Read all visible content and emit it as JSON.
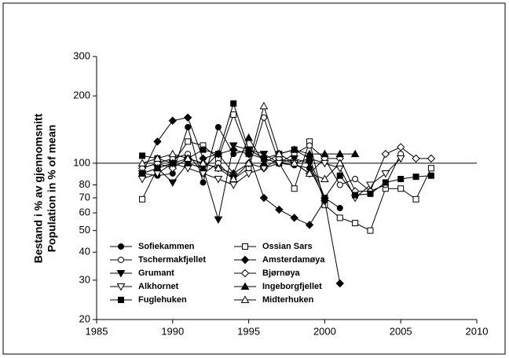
{
  "chart_data": {
    "type": "line",
    "y_title": [
      "Bestand i % av gjennomsnitt",
      "Population in % of mean"
    ],
    "x": [
      1988,
      1989,
      1990,
      1991,
      1992,
      1993,
      1994,
      1995,
      1996,
      1997,
      1998,
      1999,
      2000,
      2001,
      2002,
      2003,
      2004,
      2005,
      2006,
      2007
    ],
    "xlim": [
      1985,
      2010
    ],
    "xticks": [
      1985,
      1990,
      1995,
      2000,
      2005,
      2010
    ],
    "ylim": [
      20,
      300
    ],
    "yticks": [
      20,
      30,
      40,
      50,
      60,
      70,
      80,
      100,
      200,
      300
    ],
    "log_y": true,
    "hline": 100,
    "legend": "lower left",
    "series": [
      {
        "name": "Sofiekammen",
        "color": "#000000",
        "marker": "circle",
        "filled": true,
        "values": [
          90,
          88,
          90,
          145,
          82,
          145,
          110,
          115,
          105,
          100,
          98,
          95,
          70,
          63,
          null,
          null,
          null,
          null,
          null,
          null
        ]
      },
      {
        "name": "Ossian Sars",
        "color": "#000000",
        "marker": "square",
        "filled": false,
        "values": [
          69,
          95,
          100,
          125,
          120,
          105,
          165,
          110,
          105,
          100,
          77,
          125,
          65,
          57,
          54,
          50,
          77,
          77,
          69,
          95
        ]
      },
      {
        "name": "Tschermakfjellet",
        "color": "#000000",
        "marker": "circle",
        "filled": false,
        "values": [
          95,
          100,
          105,
          110,
          90,
          100,
          85,
          95,
          160,
          100,
          110,
          120,
          105,
          80,
          85,
          75,
          80,
          110,
          null,
          null
        ]
      },
      {
        "name": "Amsterdamøya",
        "color": "#000000",
        "marker": "diamond",
        "filled": true,
        "values": [
          90,
          125,
          155,
          160,
          105,
          110,
          115,
          110,
          70,
          62,
          57,
          53,
          68,
          29,
          null,
          null,
          null,
          null,
          null,
          null
        ]
      },
      {
        "name": "Grumant",
        "color": "#000000",
        "marker": "down",
        "filled": true,
        "values": [
          90,
          95,
          82,
          100,
          95,
          56,
          120,
          115,
          110,
          100,
          105,
          100,
          68,
          null,
          null,
          null,
          null,
          null,
          null,
          null
        ]
      },
      {
        "name": "Bjørnøya",
        "color": "#000000",
        "marker": "diamond",
        "filled": false,
        "values": [
          95,
          100,
          95,
          105,
          100,
          95,
          90,
          100,
          95,
          105,
          100,
          90,
          105,
          105,
          75,
          75,
          110,
          118,
          105,
          105
        ]
      },
      {
        "name": "Alkhornet",
        "color": "#000000",
        "marker": "down",
        "filled": false,
        "values": [
          85,
          90,
          100,
          95,
          90,
          85,
          80,
          90,
          95,
          100,
          100,
          105,
          100,
          95,
          70,
          80,
          90,
          105,
          null,
          null
        ]
      },
      {
        "name": "Ingeborgfjellet",
        "color": "#000000",
        "marker": "up",
        "filled": true,
        "values": [
          90,
          95,
          100,
          100,
          95,
          110,
          90,
          130,
          100,
          110,
          115,
          110,
          110,
          110,
          110,
          null,
          null,
          null,
          null,
          null
        ]
      },
      {
        "name": "Fuglehuken",
        "color": "#000000",
        "marker": "square",
        "filled": true,
        "values": [
          108,
          105,
          100,
          105,
          115,
          110,
          185,
          115,
          105,
          110,
          115,
          105,
          70,
          88,
          72,
          73,
          82,
          85,
          87,
          88
        ]
      },
      {
        "name": "Midterhuken",
        "color": "#000000",
        "marker": "up",
        "filled": false,
        "values": [
          100,
          105,
          110,
          105,
          100,
          95,
          85,
          100,
          180,
          110,
          100,
          90,
          85,
          100,
          null,
          null,
          null,
          null,
          null,
          null
        ]
      }
    ]
  }
}
